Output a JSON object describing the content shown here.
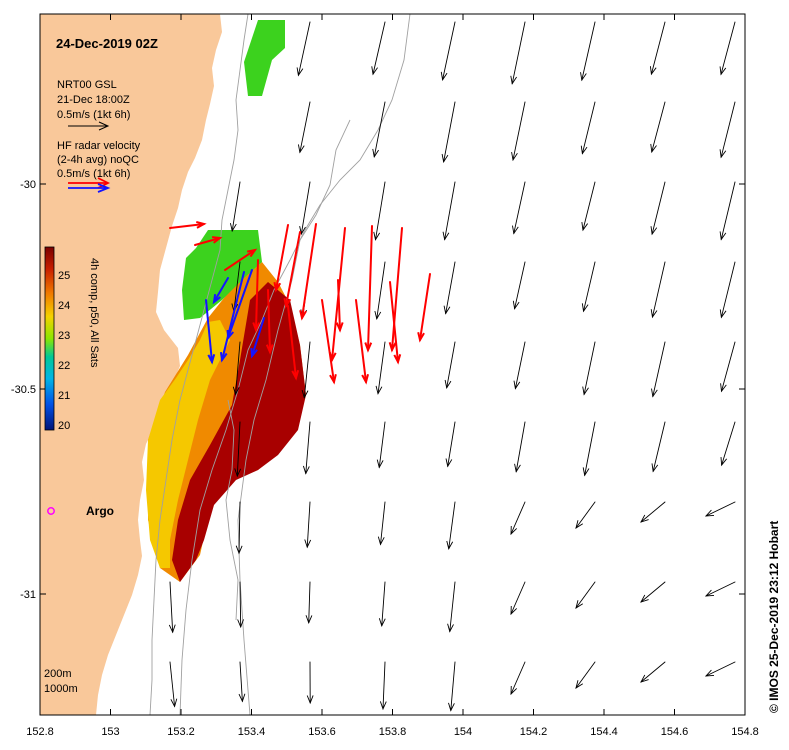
{
  "title": "24-Dec-2019 02Z",
  "model_legend": {
    "line1": "NRT00 GSL",
    "line2": "21-Dec 18:00Z",
    "line3": "0.5m/s (1kt 6h)"
  },
  "radar_legend": {
    "line1": "HF radar velocity",
    "line2": "(2-4h avg) noQC",
    "line3": "0.5m/s (1kt 6h)"
  },
  "colorbar": {
    "label": "4h comp, p50, All Sats",
    "ticks": [
      "25",
      "24",
      "23",
      "22",
      "21",
      "20"
    ]
  },
  "argo_label": "Argo",
  "depth_legend": {
    "line1": "200m",
    "line2": "1000m"
  },
  "credit": "© IMOS 25-Dec-2019 23:12 Hobart",
  "x_ticks": [
    "152.8",
    "153",
    "153.2",
    "153.4",
    "153.6",
    "153.8",
    "154",
    "154.2",
    "154.4",
    "154.6",
    "154.8"
  ],
  "y_ticks": [
    "-30",
    "-30.5",
    "-31"
  ],
  "colors": {
    "land": "#f9c89a",
    "sst_warm": "#a80000",
    "sst_orange": "#f08a00",
    "sst_yellow": "#f5c800",
    "sst_green": "#3cd21e",
    "radar_red": "#ff0000",
    "radar_blue": "#1414ff",
    "argo": "#ff00ff",
    "contour": "#a0a0a0"
  }
}
